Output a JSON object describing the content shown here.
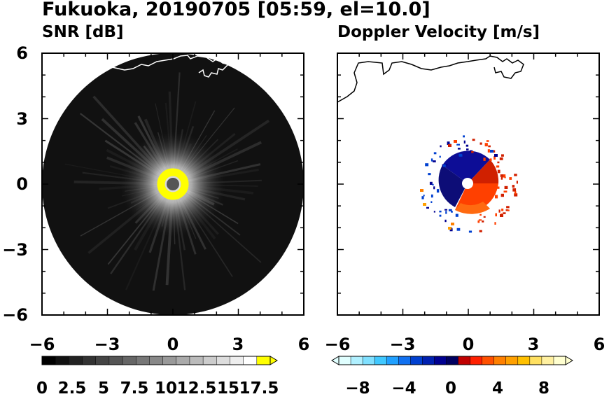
{
  "title": "Fukuoka, 20190705 [05:59, el=10.0]",
  "chart_data": [
    {
      "type": "heatmap",
      "title": "SNR [dB]",
      "xlim": [
        -6,
        6
      ],
      "ylim": [
        -6,
        6
      ],
      "xticks": [
        "−6",
        "−3",
        "0",
        "3",
        "6"
      ],
      "yticks": [
        "6",
        "3",
        "0",
        "−3",
        "−6"
      ],
      "colorbar": {
        "min": 0,
        "max": 18.5,
        "ticks": [
          "0",
          "2.5",
          "5",
          "7.5",
          "10",
          "12.5",
          "15",
          "17.5"
        ],
        "colors": [
          "#000000",
          "#111111",
          "#222222",
          "#333333",
          "#444444",
          "#555555",
          "#666666",
          "#777777",
          "#888888",
          "#999999",
          "#aaaaaa",
          "#bbbbbb",
          "#cccccc",
          "#dddddd",
          "#eeeeee",
          "#ffffff",
          "#ffff00"
        ]
      }
    },
    {
      "type": "heatmap",
      "title": "Doppler Velocity [m/s]",
      "xlim": [
        -6,
        6
      ],
      "ylim": [
        -6,
        6
      ],
      "xticks": [
        "−6",
        "−3",
        "0",
        "3",
        "6"
      ],
      "yticks": [
        "6",
        "3",
        "0",
        "−3",
        "−6"
      ],
      "colorbar": {
        "min": -10,
        "max": 10,
        "ticks": [
          "−8",
          "−4",
          "0",
          "4",
          "8"
        ],
        "colors": [
          "#e0ffff",
          "#b0f0ff",
          "#80e0ff",
          "#40c8ff",
          "#20a0ff",
          "#1070f0",
          "#0040d0",
          "#0020b0",
          "#000090",
          "#000060",
          "#c00000",
          "#ff2000",
          "#ff5000",
          "#ff8000",
          "#ffa000",
          "#ffc000",
          "#ffe060",
          "#fff0a0",
          "#ffffd0"
        ]
      }
    }
  ]
}
